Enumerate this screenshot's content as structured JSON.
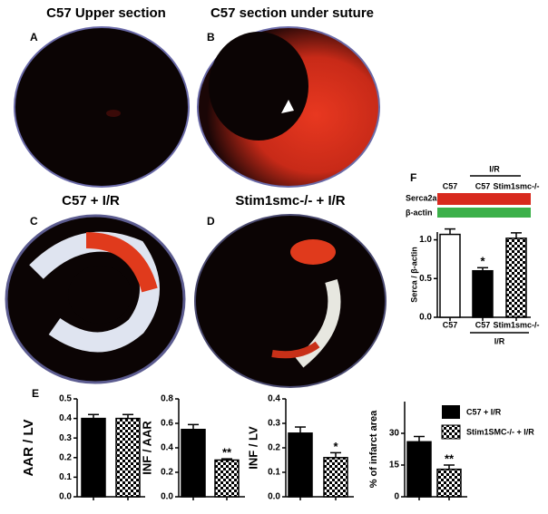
{
  "panels": {
    "letters": [
      "A",
      "B",
      "C",
      "D",
      "E",
      "F"
    ],
    "titles": [
      "C57 Upper section",
      "C57 section under suture",
      "C57 + I/R",
      "Stim1smc-/- + I/R"
    ],
    "blot": {
      "group_label": "I/R",
      "lanes": [
        "C57",
        "C57",
        "Stim1smc-/-"
      ],
      "rows": [
        "Serca2a",
        "β-actin"
      ]
    },
    "legend": [
      {
        "label": "C57 + I/R",
        "fill": "black"
      },
      {
        "label": "Stim1SMC-/- + I/R",
        "fill": "checker"
      }
    ]
  },
  "chart_data": [
    {
      "type": "bar",
      "ylabel": "AAR / LV",
      "categories": [
        null,
        null
      ],
      "values": [
        0.4,
        0.4
      ],
      "errors": [
        0.02,
        0.02
      ],
      "fills": [
        "black",
        "checker"
      ],
      "annotations": [
        null,
        null
      ],
      "ylim": [
        0,
        0.5
      ],
      "yticks": [
        {
          "value": 0,
          "label": "0.0"
        },
        {
          "value": 0.1,
          "label": "0.1"
        },
        {
          "value": 0.2,
          "label": "0.2"
        },
        {
          "value": 0.3,
          "label": "0.3"
        },
        {
          "value": 0.4,
          "label": "0.4"
        },
        {
          "value": 0.5,
          "label": "0.5"
        }
      ]
    },
    {
      "type": "bar",
      "ylabel": "INF / AAR",
      "categories": [
        null,
        null
      ],
      "values": [
        0.55,
        0.3
      ],
      "errors": [
        0.04,
        0.01
      ],
      "fills": [
        "black",
        "checker"
      ],
      "annotations": [
        null,
        "**"
      ],
      "ylim": [
        0,
        0.8
      ],
      "yticks": [
        {
          "value": 0,
          "label": "0.0"
        },
        {
          "value": 0.2,
          "label": "0.2"
        },
        {
          "value": 0.4,
          "label": "0.4"
        },
        {
          "value": 0.6,
          "label": "0.6"
        },
        {
          "value": 0.8,
          "label": "0.8"
        }
      ]
    },
    {
      "type": "bar",
      "ylabel": "INF / LV",
      "categories": [
        null,
        null
      ],
      "values": [
        0.26,
        0.16
      ],
      "errors": [
        0.025,
        0.02
      ],
      "fills": [
        "black",
        "checker"
      ],
      "annotations": [
        null,
        "*"
      ],
      "ylim": [
        0,
        0.4
      ],
      "yticks": [
        {
          "value": 0,
          "label": "0.0"
        },
        {
          "value": 0.1,
          "label": "0.1"
        },
        {
          "value": 0.2,
          "label": "0.2"
        },
        {
          "value": 0.3,
          "label": "0.3"
        },
        {
          "value": 0.4,
          "label": "0.4"
        }
      ]
    },
    {
      "type": "bar",
      "ylabel": "% of infarct area",
      "categories": [
        null,
        null
      ],
      "values": [
        26,
        13
      ],
      "errors": [
        2.5,
        2
      ],
      "fills": [
        "black",
        "checker"
      ],
      "annotations": [
        null,
        "**"
      ],
      "ylim": [
        0,
        45
      ],
      "yticks": [
        0,
        15,
        30
      ]
    },
    {
      "type": "bar",
      "ylabel": "Serca / β-actin",
      "categories": [
        "C57",
        "C57",
        "Stim1smc-/-"
      ],
      "group_label": "I/R",
      "values": [
        1.07,
        0.6,
        1.02
      ],
      "errors": [
        0.07,
        0.04,
        0.07
      ],
      "fills": [
        "white",
        "black",
        "checker"
      ],
      "annotations": [
        null,
        "*",
        null
      ],
      "ylim": [
        0,
        1.1
      ],
      "yticks": [
        {
          "value": 0,
          "label": "0.0"
        },
        {
          "value": 0.5,
          "label": "0.5"
        },
        {
          "value": 1,
          "label": "1.0"
        }
      ]
    }
  ]
}
